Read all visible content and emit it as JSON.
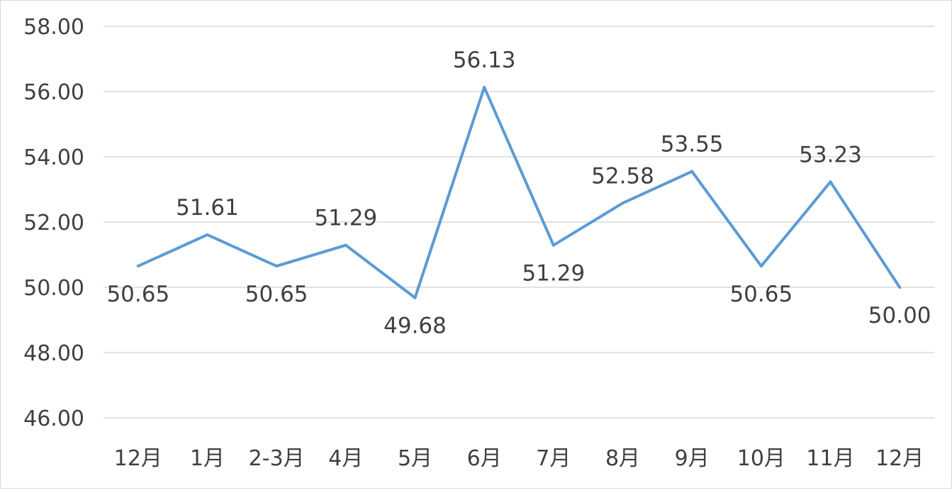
{
  "chart_data": {
    "type": "line",
    "categories": [
      "12月",
      "1月",
      "2-3月",
      "4月",
      "5月",
      "6月",
      "7月",
      "8月",
      "9月",
      "10月",
      "11月",
      "12月"
    ],
    "series": [
      {
        "values": [
          50.65,
          51.61,
          50.65,
          51.29,
          49.68,
          56.13,
          51.29,
          52.58,
          53.55,
          50.65,
          53.23,
          50.0
        ],
        "labels": [
          "50.65",
          "51.61",
          "50.65",
          "51.29",
          "49.68",
          "56.13",
          "51.29",
          "52.58",
          "53.55",
          "50.65",
          "53.23",
          "50.00"
        ],
        "label_position": [
          "below",
          "above",
          "below",
          "above",
          "below",
          "above",
          "below",
          "above",
          "above",
          "below",
          "above",
          "below"
        ],
        "color": "#5b9bd5"
      }
    ],
    "y_ticks": [
      "46.00",
      "48.00",
      "50.00",
      "52.00",
      "54.00",
      "56.00",
      "58.00"
    ],
    "ylim": [
      46,
      58
    ],
    "grid": true,
    "title": "",
    "xlabel": "",
    "ylabel": ""
  }
}
